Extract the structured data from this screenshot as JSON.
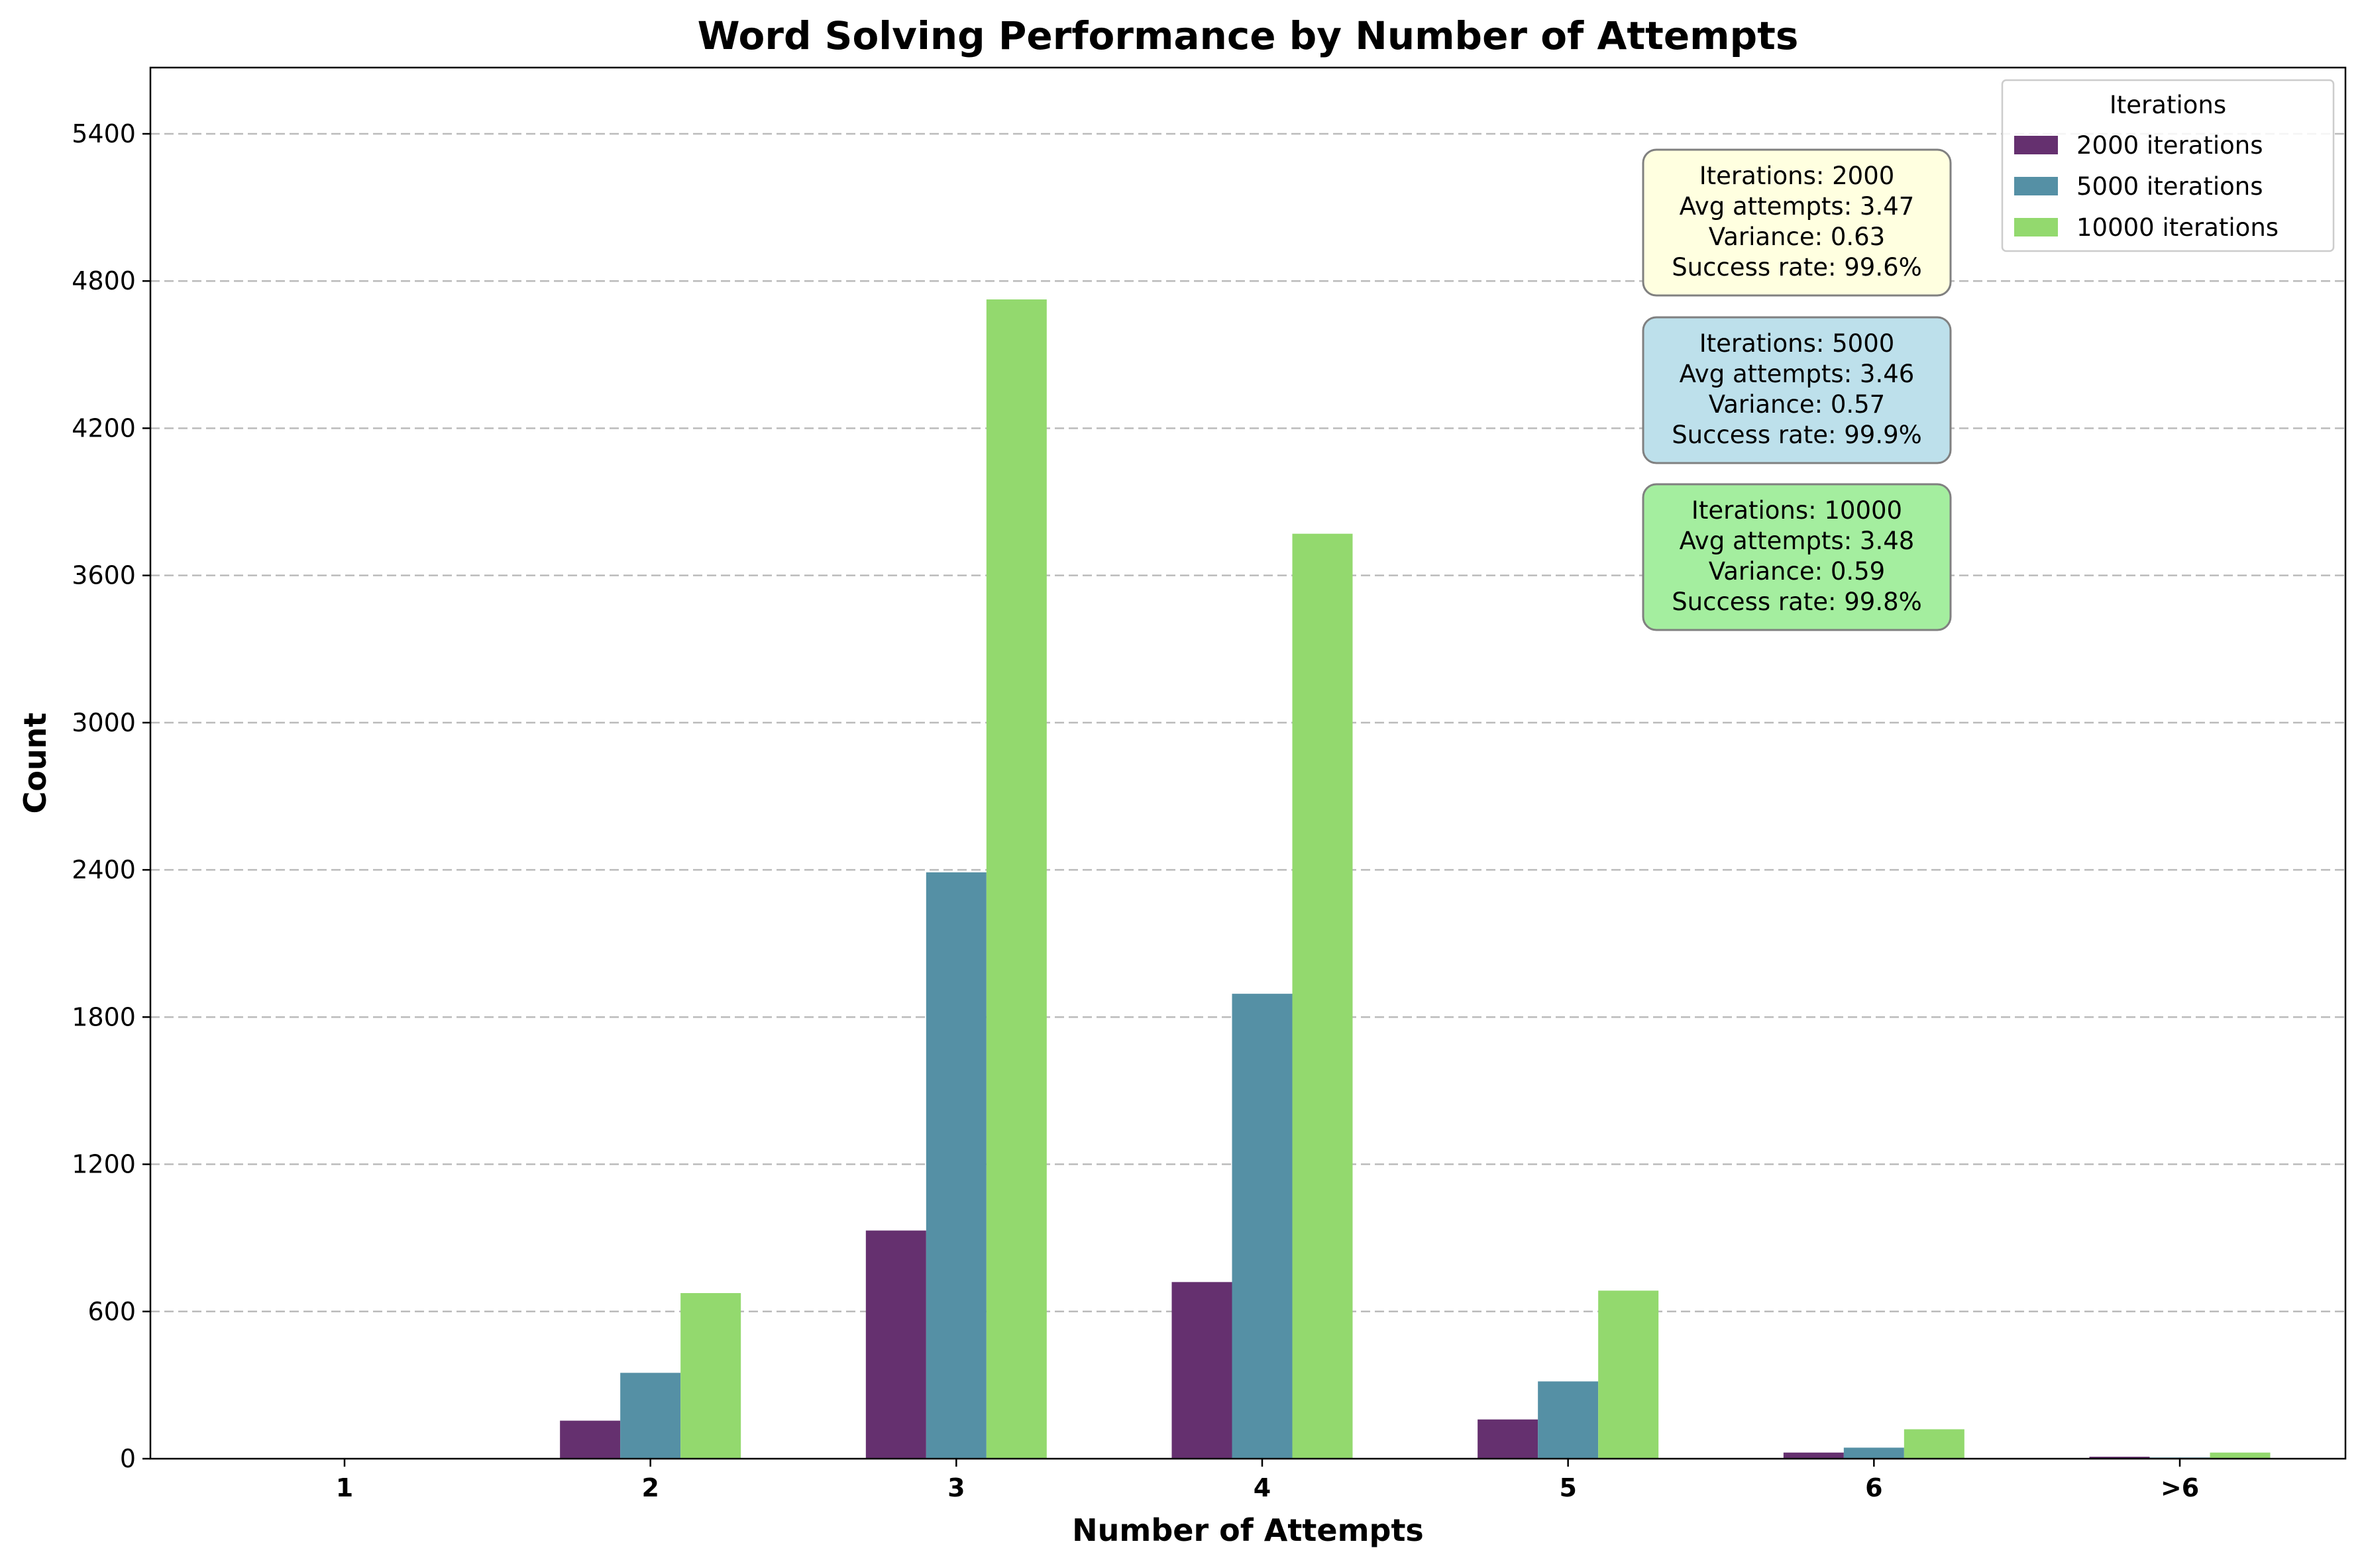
{
  "chart_data": {
    "type": "bar",
    "title": "Word Solving Performance by Number of Attempts",
    "xlabel": "Number of Attempts",
    "ylabel": "Count",
    "categories": [
      "1",
      "2",
      "3",
      "4",
      "5",
      "6",
      ">6"
    ],
    "ylim": [
      0,
      5670
    ],
    "yticks": [
      0,
      600,
      1200,
      1800,
      2400,
      3000,
      3600,
      4200,
      4800,
      5400
    ],
    "grid": "y, dashed",
    "legend_title": "Iterations",
    "legend_position": "top-right",
    "series": [
      {
        "name": "2000 iterations",
        "color": "#65306f",
        "values": [
          0,
          155,
          930,
          720,
          160,
          25,
          8
        ]
      },
      {
        "name": "5000 iterations",
        "color": "#5590a5",
        "values": [
          0,
          350,
          2390,
          1895,
          315,
          45,
          5
        ]
      },
      {
        "name": "10000 iterations",
        "color": "#93d96e",
        "values": [
          0,
          675,
          4725,
          3770,
          685,
          120,
          25
        ]
      }
    ],
    "annotations": [
      {
        "lines": [
          "Iterations: 2000",
          "Avg attempts: 3.47",
          "Variance: 0.63",
          "Success rate: 99.6%"
        ],
        "fill": "#ffffe0"
      },
      {
        "lines": [
          "Iterations: 5000",
          "Avg attempts: 3.46",
          "Variance: 0.57",
          "Success rate: 99.9%"
        ],
        "fill": "#bde0eb"
      },
      {
        "lines": [
          "Iterations: 10000",
          "Avg attempts: 3.48",
          "Variance: 0.59",
          "Success rate: 99.8%"
        ],
        "fill": "#a4ee9f"
      }
    ]
  }
}
